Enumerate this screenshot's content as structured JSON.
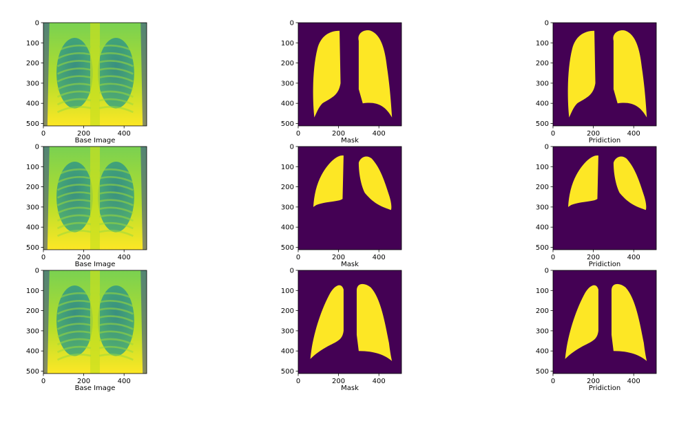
{
  "figure": {
    "panels": [
      {
        "row": 0,
        "col": 0,
        "kind": "xray",
        "label": "Base Image"
      },
      {
        "row": 0,
        "col": 1,
        "kind": "mask",
        "label": "Mask"
      },
      {
        "row": 0,
        "col": 2,
        "kind": "mask",
        "label": "Pridiction"
      },
      {
        "row": 1,
        "col": 0,
        "kind": "xray",
        "label": "Base Image"
      },
      {
        "row": 1,
        "col": 1,
        "kind": "mask",
        "label": "Mask"
      },
      {
        "row": 1,
        "col": 2,
        "kind": "mask",
        "label": "Pridiction"
      },
      {
        "row": 2,
        "col": 0,
        "kind": "xray",
        "label": "Base Image"
      },
      {
        "row": 2,
        "col": 1,
        "kind": "mask",
        "label": "Mask"
      },
      {
        "row": 2,
        "col": 2,
        "kind": "mask",
        "label": "Pridiction"
      }
    ],
    "x_ticks": [
      "0",
      "200",
      "400"
    ],
    "y_ticks": [
      "0",
      "100",
      "200",
      "300",
      "400",
      "500"
    ],
    "image_extent": [
      0,
      512
    ],
    "colors": {
      "background": "#440154",
      "foreground": "#fde725",
      "mid": "#21918c",
      "light": "#7ad151"
    }
  }
}
